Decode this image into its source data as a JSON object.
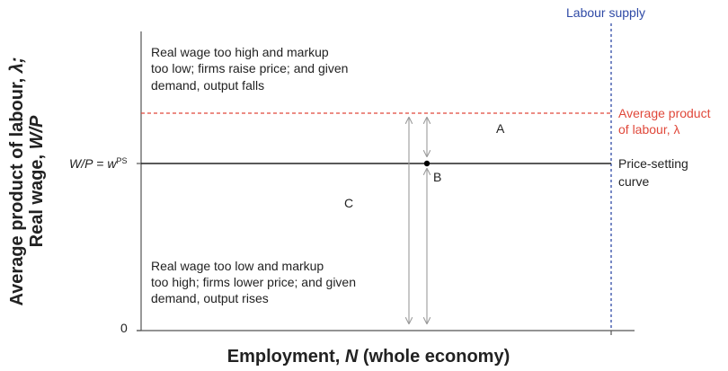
{
  "colors": {
    "axis": "#555555",
    "price_setting": "#222222",
    "labour_supply": "#2f4aa6",
    "average_product": "#e0483a",
    "arrows": "#9a9a9a",
    "point": "#000000"
  },
  "labels": {
    "labour_supply": "Labour supply",
    "avg_product_line1": "Average product",
    "avg_product_line2": "of labour, λ",
    "price_setting_line1": "Price-setting",
    "price_setting_line2": "curve",
    "wage_eq_lhs": "W/P",
    "wage_eq_mid": " = ",
    "wage_eq_w": "w",
    "wage_eq_sup": "PS",
    "origin_zero": "0",
    "region_a": "A",
    "region_b": "B",
    "region_c": "C",
    "x_axis_pre": "Employment, ",
    "x_axis_var": "N",
    "x_axis_post": " (whole economy)",
    "y_axis_line1_pre": "Average product of labour, ",
    "y_axis_line1_var": "λ;",
    "y_axis_line2_pre": "Real wage, ",
    "y_axis_line2_var": "W/P"
  },
  "annotations": {
    "top": [
      "Real wage too high and markup",
      "too low; firms raise price; and given",
      "demand, output falls"
    ],
    "bottom": [
      "Real wage too low and markup",
      "too high; firms lower price; and given",
      "demand, output rises"
    ]
  }
}
